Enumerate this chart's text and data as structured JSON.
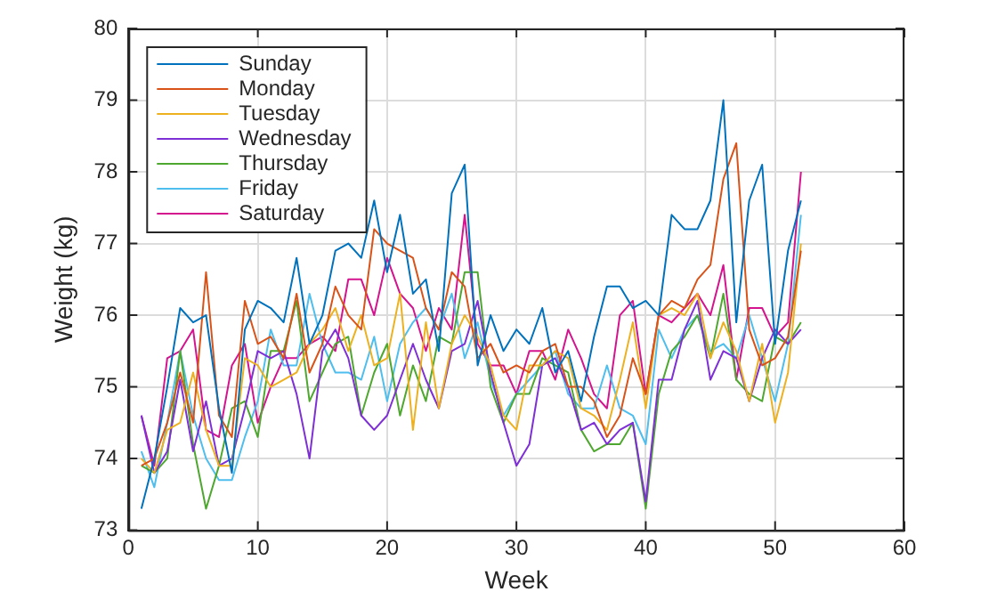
{
  "chart_data": {
    "type": "line",
    "xlabel": "Week",
    "ylabel": "Weight (kg)",
    "x": [
      1,
      2,
      3,
      4,
      5,
      6,
      7,
      8,
      9,
      10,
      11,
      12,
      13,
      14,
      15,
      16,
      17,
      18,
      19,
      20,
      21,
      22,
      23,
      24,
      25,
      26,
      27,
      28,
      29,
      30,
      31,
      32,
      33,
      34,
      35,
      36,
      37,
      38,
      39,
      40,
      41,
      42,
      43,
      44,
      45,
      46,
      47,
      48,
      49,
      50,
      51,
      52
    ],
    "series": [
      {
        "name": "Sunday",
        "color": "#0072bd",
        "values": [
          73.3,
          74.0,
          75.0,
          76.1,
          75.9,
          76.0,
          74.7,
          73.8,
          75.8,
          76.2,
          76.1,
          75.9,
          76.8,
          75.6,
          76.0,
          76.9,
          77.0,
          76.8,
          77.6,
          76.6,
          77.4,
          76.3,
          76.5,
          75.5,
          77.7,
          78.1,
          75.3,
          76.0,
          75.5,
          75.8,
          75.6,
          76.1,
          75.2,
          75.5,
          74.8,
          75.7,
          76.4,
          76.4,
          76.1,
          76.2,
          76.0,
          77.4,
          77.2,
          77.2,
          77.6,
          79.0,
          75.9,
          77.6,
          78.1,
          75.6,
          76.9,
          77.6
        ]
      },
      {
        "name": "Monday",
        "color": "#d95319",
        "values": [
          73.9,
          74.0,
          74.5,
          75.2,
          74.5,
          76.6,
          74.6,
          74.3,
          76.2,
          75.6,
          75.7,
          75.4,
          76.3,
          75.2,
          75.6,
          76.4,
          76.0,
          75.8,
          77.2,
          77.0,
          76.9,
          76.8,
          76.1,
          75.8,
          76.6,
          76.4,
          75.4,
          75.6,
          75.2,
          75.3,
          75.2,
          75.5,
          75.6,
          75.0,
          75.0,
          74.8,
          74.3,
          74.6,
          75.4,
          74.9,
          76.0,
          76.2,
          76.1,
          76.5,
          76.7,
          77.9,
          78.4,
          75.8,
          75.3,
          75.4,
          75.7,
          76.9
        ]
      },
      {
        "name": "Tuesday",
        "color": "#edb120",
        "values": [
          74.0,
          73.8,
          74.4,
          74.5,
          75.2,
          74.4,
          73.9,
          73.9,
          75.4,
          75.3,
          75.0,
          75.1,
          75.2,
          75.6,
          75.8,
          76.1,
          75.5,
          76.0,
          75.3,
          75.4,
          76.3,
          74.4,
          75.9,
          74.7,
          75.6,
          76.0,
          75.7,
          75.3,
          74.6,
          74.4,
          75.3,
          75.3,
          75.5,
          75.4,
          74.7,
          74.6,
          74.4,
          75.1,
          75.9,
          74.7,
          76.0,
          76.1,
          76.0,
          76.3,
          75.4,
          75.9,
          75.5,
          74.8,
          75.6,
          74.5,
          75.2,
          77.0
        ]
      },
      {
        "name": "Wednesday",
        "color": "#7e2fd6",
        "values": [
          74.6,
          73.8,
          74.1,
          75.1,
          74.1,
          74.8,
          73.9,
          74.0,
          74.7,
          75.5,
          75.4,
          75.5,
          74.9,
          74.0,
          75.5,
          75.8,
          75.4,
          74.6,
          74.4,
          74.6,
          75.1,
          75.6,
          75.1,
          74.7,
          75.5,
          75.6,
          76.2,
          75.2,
          74.5,
          73.9,
          74.2,
          75.3,
          75.4,
          75.0,
          74.4,
          74.5,
          74.2,
          74.4,
          74.5,
          73.4,
          75.1,
          75.1,
          75.8,
          76.2,
          75.1,
          75.5,
          75.4,
          74.8,
          75.4,
          75.8,
          75.6,
          75.8
        ]
      },
      {
        "name": "Thursday",
        "color": "#4ea72e",
        "values": [
          73.9,
          73.8,
          74.0,
          75.5,
          74.2,
          73.3,
          73.9,
          74.7,
          74.8,
          74.3,
          75.5,
          75.5,
          76.2,
          74.8,
          75.2,
          75.6,
          75.7,
          74.6,
          75.2,
          75.6,
          74.6,
          75.3,
          74.8,
          75.7,
          75.6,
          76.6,
          76.6,
          75.0,
          74.5,
          74.9,
          74.9,
          75.4,
          75.3,
          75.2,
          74.4,
          74.1,
          74.2,
          74.2,
          74.5,
          73.3,
          74.9,
          75.5,
          75.7,
          76.0,
          75.4,
          76.3,
          75.1,
          74.9,
          74.8,
          75.7,
          75.6,
          75.9
        ]
      },
      {
        "name": "Friday",
        "color": "#4dbeee",
        "values": [
          74.1,
          73.6,
          74.5,
          75.5,
          74.6,
          74.0,
          73.7,
          73.7,
          74.3,
          74.8,
          75.8,
          75.3,
          75.3,
          76.3,
          75.6,
          75.2,
          75.2,
          75.1,
          75.7,
          74.8,
          75.6,
          75.9,
          76.1,
          75.8,
          76.3,
          75.4,
          75.9,
          75.1,
          74.6,
          74.9,
          75.1,
          75.3,
          75.5,
          74.9,
          74.7,
          74.7,
          75.3,
          74.7,
          74.6,
          74.2,
          75.8,
          75.4,
          75.8,
          76.0,
          75.5,
          75.6,
          75.4,
          76.0,
          75.4,
          74.8,
          75.6,
          77.4
        ]
      },
      {
        "name": "Saturday",
        "color": "#d4148f",
        "values": [
          74.6,
          73.9,
          75.4,
          75.5,
          75.8,
          74.4,
          74.3,
          75.3,
          75.6,
          74.5,
          75.0,
          75.4,
          75.4,
          75.6,
          75.7,
          75.5,
          76.5,
          76.5,
          76.0,
          76.8,
          76.3,
          76.1,
          75.5,
          76.1,
          75.8,
          77.4,
          75.6,
          75.3,
          75.3,
          74.9,
          75.5,
          75.5,
          75.1,
          75.8,
          75.4,
          74.9,
          74.7,
          76.0,
          76.2,
          74.9,
          76.0,
          75.9,
          76.1,
          76.3,
          76.0,
          76.7,
          75.1,
          76.1,
          76.1,
          75.7,
          75.9,
          78.0
        ]
      }
    ],
    "xlim": [
      0,
      60
    ],
    "xticks": [
      0,
      10,
      20,
      30,
      40,
      50,
      60
    ],
    "ylim": [
      73,
      80
    ],
    "yticks": [
      73,
      74,
      75,
      76,
      77,
      78,
      79,
      80
    ],
    "grid": true,
    "legend": "top left",
    "marker": "none",
    "line_style": "solid"
  }
}
